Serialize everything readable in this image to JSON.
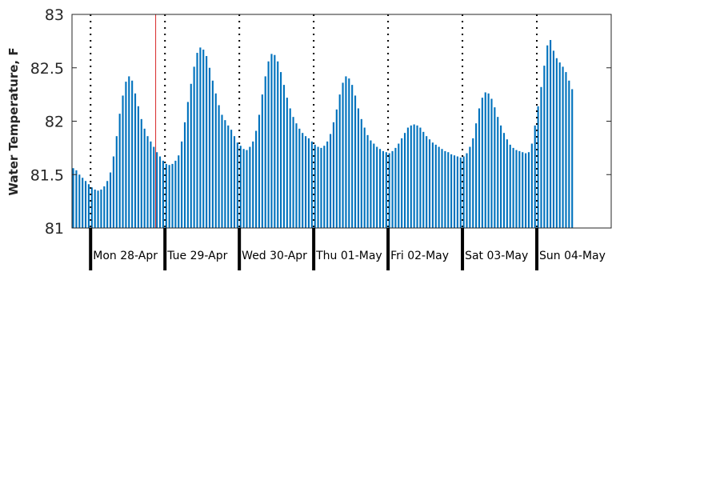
{
  "chart_data": {
    "type": "bar",
    "title": "",
    "xlabel": "",
    "ylabel": "Water Temperature, F",
    "ylim": [
      81,
      83
    ],
    "yticks": [
      "81",
      "81.5",
      "82",
      "82.5",
      "83"
    ],
    "x_start": "Sun 27-Apr 18:00",
    "x_end": "Mon 05-May 00:00",
    "x_step": "1 hour",
    "day_labels": [
      "Mon 28-Apr",
      "Tue 29-Apr",
      "Wed 30-Apr",
      "Thu 01-May",
      "Fri 02-May",
      "Sat 03-May",
      "Sun 04-May"
    ],
    "current_time": "Mon 28-Apr 21:00",
    "bar_color": "#0072bd",
    "current_time_color": "#d62728",
    "grid": false,
    "series": [
      {
        "values": [
          81.56,
          81.54,
          81.5,
          81.47,
          81.44,
          81.41,
          81.38,
          81.36,
          81.35,
          81.36,
          81.39,
          81.44,
          81.52,
          81.67,
          81.86,
          82.07,
          82.24,
          82.37,
          82.42,
          82.38,
          82.26,
          82.14,
          82.02,
          81.93,
          81.86,
          81.81,
          81.76,
          81.71,
          81.67,
          81.63,
          81.6,
          81.59,
          81.6,
          81.63,
          81.68,
          81.81,
          81.99,
          82.18,
          82.35,
          82.51,
          82.64,
          82.69,
          82.67,
          82.61,
          82.5,
          82.38,
          82.26,
          82.15,
          82.06,
          82.01,
          81.96,
          81.92,
          81.86,
          81.8,
          81.77,
          81.74,
          81.73,
          81.76,
          81.81,
          81.91,
          82.06,
          82.25,
          82.42,
          82.56,
          82.63,
          82.62,
          82.56,
          82.46,
          82.34,
          82.22,
          82.12,
          82.04,
          81.98,
          81.93,
          81.89,
          81.86,
          81.84,
          81.81,
          81.78,
          81.76,
          81.75,
          81.77,
          81.81,
          81.88,
          81.99,
          82.11,
          82.25,
          82.36,
          82.42,
          82.4,
          82.34,
          82.24,
          82.12,
          82.02,
          81.94,
          81.87,
          81.82,
          81.79,
          81.76,
          81.74,
          81.72,
          81.71,
          81.7,
          81.72,
          81.75,
          81.79,
          81.84,
          81.89,
          81.94,
          81.96,
          81.97,
          81.96,
          81.94,
          81.9,
          81.86,
          81.83,
          81.8,
          81.78,
          81.76,
          81.74,
          81.72,
          81.71,
          81.69,
          81.68,
          81.67,
          81.66,
          81.67,
          81.7,
          81.76,
          81.84,
          81.98,
          82.12,
          82.22,
          82.27,
          82.26,
          82.21,
          82.13,
          82.04,
          81.96,
          81.89,
          81.83,
          81.78,
          81.75,
          81.73,
          81.72,
          81.71,
          81.7,
          81.71,
          81.79,
          81.96,
          82.14,
          82.32,
          82.52,
          82.71,
          82.76,
          82.66,
          82.59,
          82.55,
          82.51,
          82.46,
          82.38,
          82.3
        ]
      }
    ]
  }
}
